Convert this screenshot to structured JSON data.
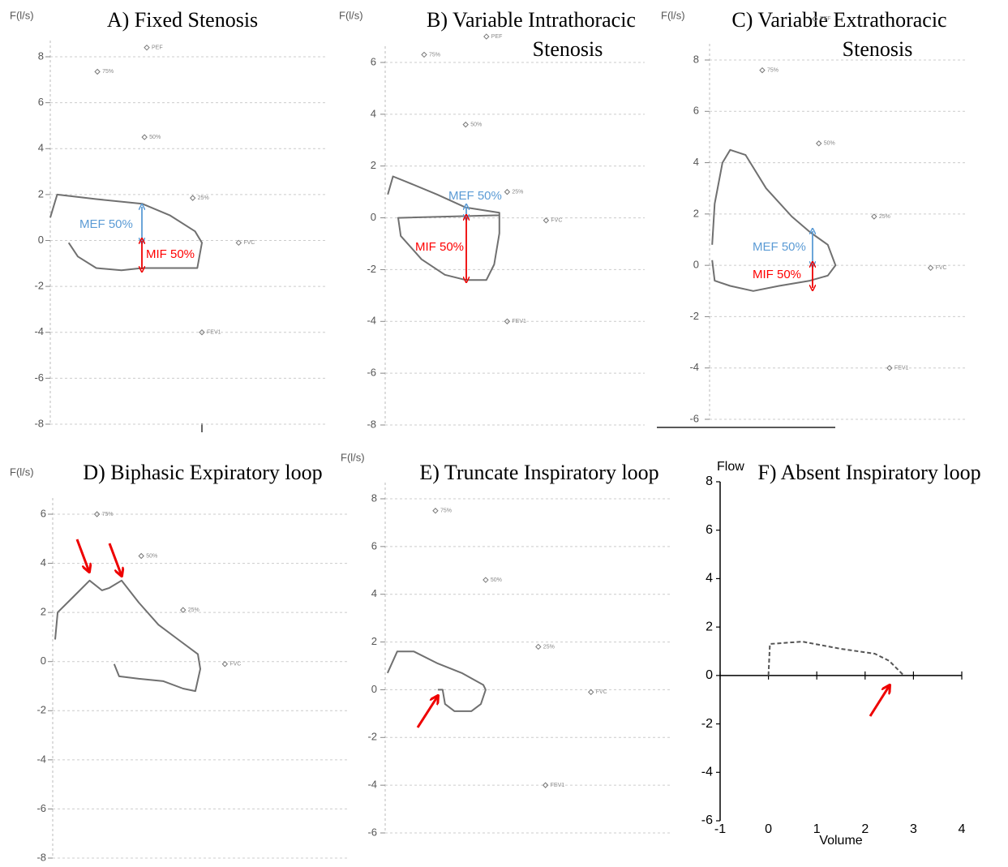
{
  "chart_data": [
    {
      "type": "line",
      "title": [
        "A) Fixed Stenosis"
      ],
      "ylabel": "F(l/s)",
      "ylim": [
        -8,
        8
      ],
      "yticks": [
        8,
        6,
        4,
        2,
        0,
        -2,
        -4,
        -6,
        -8
      ],
      "xlim": [
        0,
        12
      ],
      "grid": true,
      "series": [
        {
          "color": "#707070",
          "dash": false,
          "x": [
            0,
            0.3,
            2.0,
            4.0,
            5.2,
            6.3,
            6.6,
            6.4,
            5.6,
            4.0,
            3.1,
            2.0,
            1.2,
            0.8
          ],
          "values": [
            1.0,
            2.0,
            1.8,
            1.6,
            1.1,
            0.4,
            -0.1,
            -1.2,
            -1.2,
            -1.2,
            -1.3,
            -1.2,
            -0.7,
            -0.1
          ]
        }
      ],
      "markers": {
        "labels": [
          "PEF",
          "75%",
          "50%",
          "25%",
          "FVC",
          "FEV1"
        ],
        "x": [
          4.2,
          2.05,
          4.1,
          6.2,
          8.2,
          6.6
        ],
        "y": [
          8.4,
          7.35,
          4.5,
          1.85,
          -0.1,
          -4.0
        ]
      },
      "annotations": [
        {
          "text": "MEF 50%",
          "color": "#5b9bd5"
        },
        {
          "text": "MIF 50%",
          "color": "#ff0000"
        }
      ]
    },
    {
      "type": "line",
      "title": [
        "B) Variable Intrathoracic",
        "Stenosis"
      ],
      "ylabel": "F(l/s)",
      "ylim": [
        -8,
        6
      ],
      "yticks": [
        6,
        4,
        2,
        0,
        -2,
        -4,
        -6,
        -8
      ],
      "xlim": [
        0,
        10
      ],
      "grid": true,
      "series": [
        {
          "color": "#707070",
          "dash": false,
          "x": [
            0.1,
            0.3,
            0.8,
            2.0,
            3.1,
            4.4,
            4.4,
            4.2,
            3.9,
            3.1,
            2.3,
            1.4,
            0.6,
            0.5,
            4.4
          ],
          "values": [
            0.9,
            1.6,
            1.4,
            0.9,
            0.4,
            0.2,
            -0.6,
            -1.8,
            -2.4,
            -2.4,
            -2.2,
            -1.6,
            -0.7,
            0.0,
            0.1
          ]
        }
      ],
      "markers": {
        "labels": [
          "PEF",
          "75%",
          "50%",
          "25%",
          "FVC",
          "FEV1"
        ],
        "x": [
          3.9,
          1.5,
          3.1,
          4.7,
          6.2,
          4.7
        ],
        "y": [
          7.0,
          6.3,
          3.6,
          1.0,
          -0.1,
          -4.0
        ]
      },
      "annotations": [
        {
          "text": "MEF 50%",
          "color": "#5b9bd5"
        },
        {
          "text": "MIF 50%",
          "color": "#ff0000"
        }
      ]
    },
    {
      "type": "line",
      "title": [
        "C) Variable Extrathoracic",
        "Stenosis"
      ],
      "ylabel": "F(l/s)",
      "ylim": [
        -6,
        8
      ],
      "yticks": [
        8,
        6,
        4,
        2,
        0,
        -2,
        -4,
        -6
      ],
      "xlim": [
        0,
        10
      ],
      "grid": true,
      "series": [
        {
          "color": "#707070",
          "dash": false,
          "x": [
            0.1,
            0.2,
            0.5,
            0.8,
            1.4,
            2.2,
            3.2,
            3.9,
            4.6,
            4.9,
            4.6,
            3.9,
            2.7,
            1.7,
            0.8,
            0.2,
            0.1
          ],
          "values": [
            0.8,
            2.4,
            4.0,
            4.5,
            4.3,
            3.0,
            1.9,
            1.3,
            0.8,
            0.0,
            -0.4,
            -0.6,
            -0.8,
            -1.0,
            -0.8,
            -0.6,
            0.2
          ]
        }
      ],
      "markers": {
        "labels": [
          "PEF",
          "75%",
          "50%",
          "25%",
          "FVC",
          "FEV1"
        ],
        "x": [
          4.1,
          2.05,
          4.25,
          6.4,
          8.6,
          7.0
        ],
        "y": [
          9.6,
          7.6,
          4.75,
          1.9,
          -0.1,
          -4.0
        ]
      },
      "annotations": [
        {
          "text": "MEF 50%",
          "color": "#5b9bd5"
        },
        {
          "text": "MIF 50%",
          "color": "#ff0000"
        }
      ]
    },
    {
      "type": "line",
      "title": [
        "D) Biphasic Expiratory loop"
      ],
      "ylabel": "F(l/s)",
      "ylim": [
        -8,
        6
      ],
      "yticks": [
        6,
        4,
        2,
        0,
        -2,
        -4,
        -6,
        -8
      ],
      "xlim": [
        0,
        12
      ],
      "grid": true,
      "series": [
        {
          "color": "#707070",
          "dash": false,
          "x": [
            0.1,
            0.2,
            0.8,
            1.5,
            2.0,
            2.3,
            2.8,
            3.5,
            4.3,
            5.1,
            5.9,
            6.0,
            5.8,
            5.3,
            4.5,
            3.5,
            2.7,
            2.5
          ],
          "values": [
            0.9,
            2.0,
            2.6,
            3.3,
            2.9,
            3.0,
            3.3,
            2.4,
            1.5,
            0.9,
            0.3,
            -0.3,
            -1.2,
            -1.1,
            -0.8,
            -0.7,
            -0.6,
            -0.1
          ]
        }
      ],
      "markers": {
        "labels": [
          "75%",
          "50%",
          "25%",
          "FVC"
        ],
        "x": [
          1.8,
          3.6,
          5.3,
          7.0
        ],
        "y": [
          6.0,
          4.3,
          2.1,
          -0.1
        ]
      },
      "annotations": []
    },
    {
      "type": "line",
      "title": [
        "E) Truncate Inspiratory loop"
      ],
      "ylabel": "F(l/s)",
      "ylim": [
        -6,
        8
      ],
      "yticks": [
        8,
        6,
        4,
        2,
        0,
        -2,
        -4,
        -6
      ],
      "xlim": [
        0,
        12
      ],
      "grid": true,
      "series": [
        {
          "color": "#707070",
          "dash": false,
          "x": [
            0.1,
            0.5,
            1.2,
            2.2,
            3.2,
            4.1,
            4.2,
            4.0,
            3.6,
            2.9,
            2.5,
            2.4,
            2.2
          ],
          "values": [
            0.7,
            1.6,
            1.6,
            1.1,
            0.7,
            0.2,
            0.0,
            -0.6,
            -0.9,
            -0.9,
            -0.6,
            0.0,
            0.0
          ]
        }
      ],
      "markers": {
        "labels": [
          "75%",
          "50%",
          "25%",
          "FVC",
          "FEV1"
        ],
        "x": [
          2.1,
          4.2,
          6.4,
          8.6,
          6.7
        ],
        "y": [
          7.5,
          4.6,
          1.8,
          -0.1,
          -4.0
        ]
      },
      "annotations": []
    },
    {
      "type": "line",
      "title": [
        "F) Absent Inspiratory loop"
      ],
      "ylabel": "Flow",
      "xlabel": "Volume",
      "ylim": [
        -6,
        8
      ],
      "yticks": [
        8,
        6,
        4,
        2,
        0,
        -2,
        -4,
        -6
      ],
      "xlim": [
        -1,
        4
      ],
      "xticks": [
        -1,
        0,
        1,
        2,
        3,
        4
      ],
      "grid": false,
      "series": [
        {
          "color": "#555555",
          "dash": true,
          "x": [
            0,
            0.03,
            0.7,
            1.5,
            2.2,
            2.5,
            2.8
          ],
          "values": [
            0,
            1.3,
            1.4,
            1.1,
            0.9,
            0.6,
            0
          ]
        }
      ],
      "annotations": []
    }
  ]
}
